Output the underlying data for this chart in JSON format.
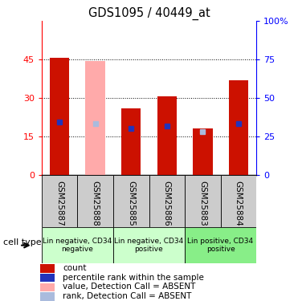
{
  "title": "GDS1095 / 40449_at",
  "samples": [
    "GSM25887",
    "GSM25888",
    "GSM25885",
    "GSM25886",
    "GSM25883",
    "GSM25884"
  ],
  "count_values": [
    45.5,
    0,
    26,
    30.5,
    18,
    37
  ],
  "count_absent": [
    0,
    44.5,
    0,
    0,
    0,
    0
  ],
  "rank_values": [
    34,
    0,
    30,
    31.5,
    0,
    33
  ],
  "rank_absent": [
    0,
    33,
    0,
    0,
    28,
    0
  ],
  "left_ylim": [
    0,
    60
  ],
  "right_ylim": [
    0,
    100
  ],
  "left_yticks": [
    0,
    15,
    30,
    45
  ],
  "right_yticks": [
    0,
    25,
    50,
    75,
    100
  ],
  "left_yticklabels": [
    "0",
    "15",
    "30",
    "45"
  ],
  "right_yticklabels": [
    "0",
    "25",
    "50",
    "75",
    "100%"
  ],
  "bar_color": "#cc1100",
  "bar_absent_color": "#ffaaaa",
  "rank_color": "#2233bb",
  "rank_absent_color": "#aabbdd",
  "bar_width": 0.55,
  "rank_marker_size": 5,
  "xlabel_area_color": "#cccccc",
  "ct_colors": [
    "#ccffcc",
    "#ccffcc",
    "#88ee88"
  ],
  "ct_ranges": [
    [
      0,
      2
    ],
    [
      2,
      4
    ],
    [
      4,
      6
    ]
  ],
  "ct_labels": [
    "Lin negative, CD34\nnegative",
    "Lin negative, CD34\npositive",
    "Lin positive, CD34\npositive"
  ],
  "legend_items": [
    {
      "color": "#cc1100",
      "label": "count"
    },
    {
      "color": "#2233bb",
      "label": "percentile rank within the sample"
    },
    {
      "color": "#ffaaaa",
      "label": "value, Detection Call = ABSENT"
    },
    {
      "color": "#aabbdd",
      "label": "rank, Detection Call = ABSENT"
    }
  ]
}
